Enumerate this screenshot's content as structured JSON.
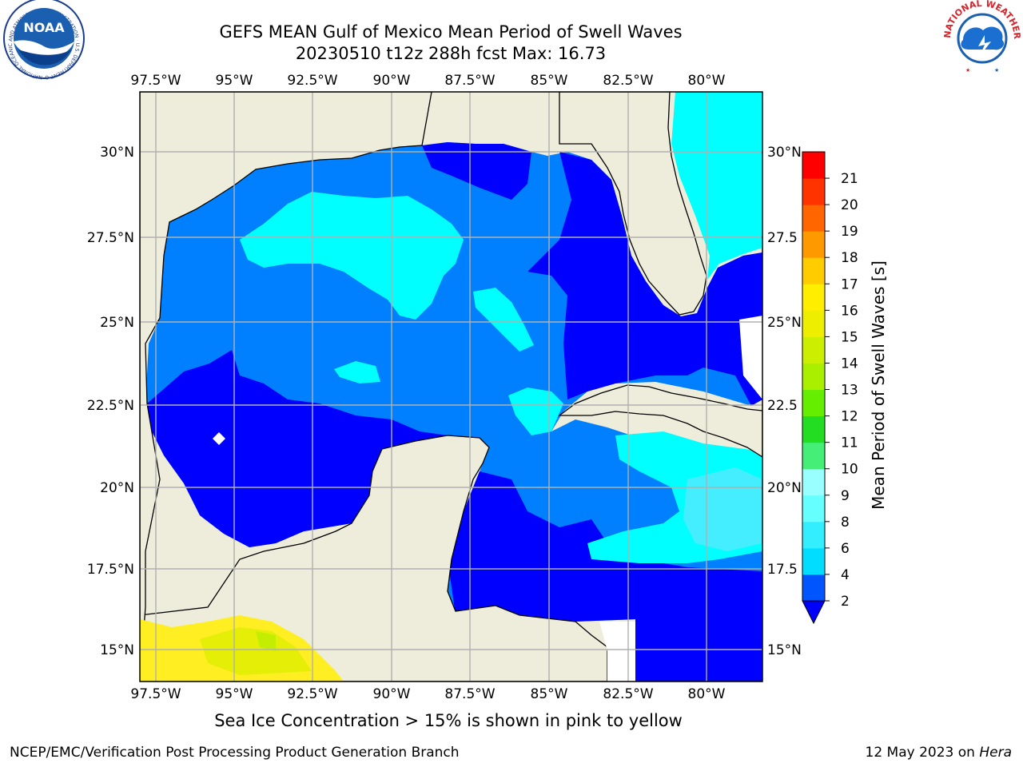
{
  "header": {
    "title_line1": "GEFS MEAN Gulf of Mexico Mean Period of Swell Waves",
    "title_line2": "20230510 t12z 288h fcst   Max: 16.73"
  },
  "logos": {
    "left": {
      "icon": "noaa-logo",
      "text": "NOAA",
      "ring_text": "NATIONAL OCEANIC AND ATMOSPHERIC ADMINISTRATION · U.S. DEPARTMENT OF COMMERCE"
    },
    "right": {
      "icon": "nws-logo",
      "ring_text": "NATIONAL WEATHER SERVICE"
    }
  },
  "map": {
    "lon_ticks": [
      "97.5°W",
      "95°W",
      "92.5°W",
      "90°W",
      "87.5°W",
      "85°W",
      "82.5°W",
      "80°W"
    ],
    "lat_ticks_left": [
      "30°N",
      "27.5°N",
      "25°N",
      "22.5°N",
      "20°N",
      "17.5°N",
      "15°N"
    ],
    "lat_ticks_right": [
      "30°N",
      "27.5",
      "25°N",
      "22.5",
      "20°N",
      "17.5",
      "15°N"
    ],
    "colors": {
      "land": "#eeeddc",
      "no_data": "#ffffff",
      "grid": "#b0b0b0",
      "coast": "#000000"
    }
  },
  "colorbar": {
    "label": "Mean Period of Swell Waves [s]",
    "ticks": [
      "2",
      "4",
      "6",
      "8",
      "9",
      "10",
      "11",
      "12",
      "13",
      "14",
      "15",
      "16",
      "17",
      "18",
      "19",
      "20",
      "21"
    ],
    "colors": [
      "#0055ff",
      "#00ddff",
      "#33eeff",
      "#66ffff",
      "#99ffff",
      "#44ee77",
      "#22dd22",
      "#66ee00",
      "#aaee00",
      "#ccee00",
      "#eeee00",
      "#ffee00",
      "#ffcc00",
      "#ff9900",
      "#ff6600",
      "#ff3300",
      "#ff0000"
    ],
    "extend_low_color": "#0000ff"
  },
  "footer": {
    "sea_ice_note": "Sea Ice Concentration > 15% is shown in pink to yellow",
    "credit": "NCEP/EMC/Verification Post Processing Product Generation Branch",
    "date_prefix": "12 May 2023 on",
    "host": "Hera"
  }
}
